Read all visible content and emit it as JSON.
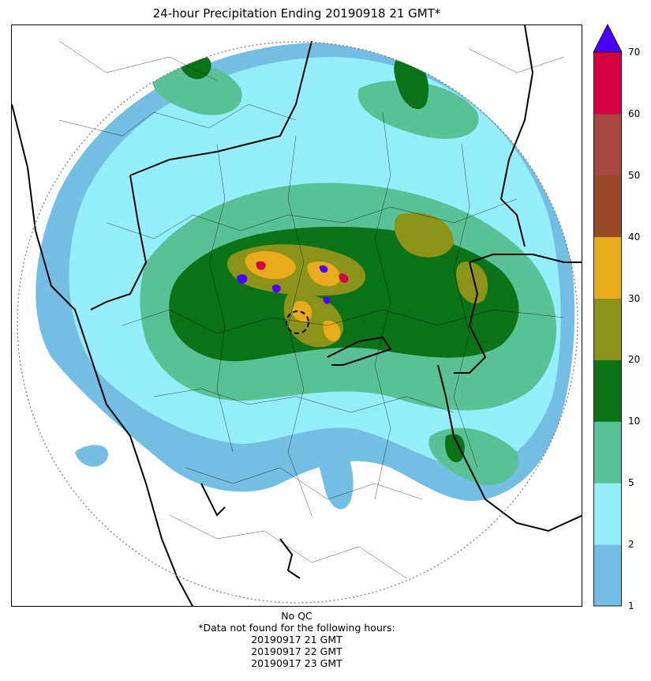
{
  "title": "24-hour Precipitation Ending 20190918 21 GMT*",
  "colorbar": {
    "levels": [
      1,
      2,
      5,
      10,
      20,
      30,
      40,
      50,
      60,
      70
    ],
    "tick_labels": [
      "1",
      "2",
      "5",
      "10",
      "20",
      "30",
      "40",
      "50",
      "60",
      "70"
    ],
    "colors": [
      "#74bde3",
      "#96eefd",
      "#5ac196",
      "#0b7218",
      "#8b9418",
      "#e8ab1b",
      "#99482a",
      "#a64942",
      "#d4003f"
    ],
    "extend_color": "#4b00ff"
  },
  "map": {
    "colors": {
      "radar_range_ring": "#808080",
      "state_border": "#000000",
      "district_border": "#000000",
      "center_marker": "#000000"
    }
  },
  "footer": {
    "qc_label": "No QC",
    "missing_note": "*Data not found for the following hours:",
    "missing_hours": [
      "20190917 21 GMT",
      "20190917 22 GMT",
      "20190917 23 GMT"
    ]
  }
}
